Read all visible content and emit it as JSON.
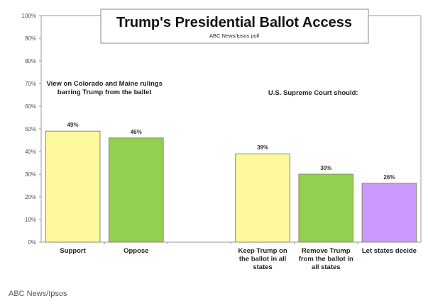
{
  "chart_data": {
    "type": "bar",
    "title": "Trump's Presidential Ballot Access",
    "subtitle": "ABC News/Ipsos poll",
    "xlabel": "",
    "ylabel": "",
    "ylim": [
      0,
      100
    ],
    "yticks": [
      "0%",
      "10%",
      "20%",
      "30%",
      "40%",
      "50%",
      "60%",
      "70%",
      "80%",
      "90%",
      "100%"
    ],
    "grid": false,
    "groups": [
      {
        "annotation": [
          "View on Colorado and Maine rulings",
          "barring Trump from the ballet"
        ],
        "categories": [
          {
            "label": [
              "Support"
            ],
            "value": 49,
            "data_label": "49%",
            "color": "#fdf89b"
          },
          {
            "label": [
              "Oppose"
            ],
            "value": 46,
            "data_label": "46%",
            "color": "#92d050"
          }
        ]
      },
      {
        "annotation": [
          "U.S. Supreme Court should:"
        ],
        "categories": [
          {
            "label": [
              "Keep Trump on",
              "the ballot in all",
              "states"
            ],
            "value": 39,
            "data_label": "39%",
            "color": "#fdf89b"
          },
          {
            "label": [
              "Remove Trump",
              "from the ballot in",
              "all states"
            ],
            "value": 30,
            "data_label": "30%",
            "color": "#92d050"
          },
          {
            "label": [
              "Let states decide"
            ],
            "value": 26,
            "data_label": "26%",
            "color": "#cc99ff"
          }
        ]
      }
    ]
  },
  "source": "ABC News/Ipsos"
}
